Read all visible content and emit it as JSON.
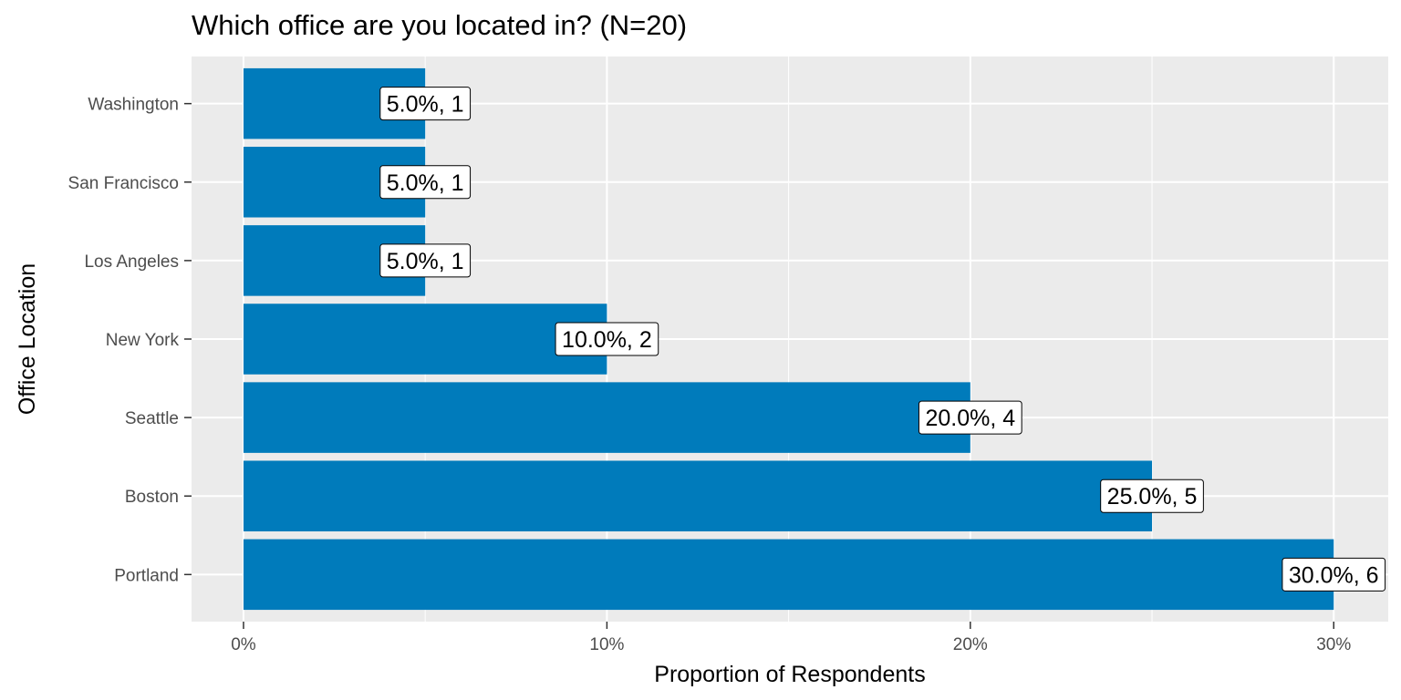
{
  "chart_data": {
    "type": "bar",
    "orientation": "horizontal",
    "title": "Which office are you located in? (N=20)",
    "xlabel": "Proportion of Respondents",
    "ylabel": "Office Location",
    "categories": [
      "Washington",
      "San Francisco",
      "Los Angeles",
      "New York",
      "Seattle",
      "Boston",
      "Portland"
    ],
    "values": [
      0.05,
      0.05,
      0.05,
      0.1,
      0.2,
      0.25,
      0.3
    ],
    "counts": [
      1,
      1,
      1,
      2,
      4,
      5,
      6
    ],
    "data_labels": [
      "5.0%, 1",
      "5.0%, 1",
      "5.0%, 1",
      "10.0%, 2",
      "20.0%, 4",
      "25.0%, 5",
      "30.0%, 6"
    ],
    "x_ticks": [
      0,
      0.1,
      0.2,
      0.3
    ],
    "x_tick_labels": [
      "0%",
      "10%",
      "20%",
      "30%"
    ],
    "xlim": [
      -0.0143,
      0.315
    ],
    "grid": true,
    "legend": "none",
    "colors": {
      "bar": "#007bbb",
      "panel": "#ebebeb",
      "grid": "#ffffff"
    }
  }
}
